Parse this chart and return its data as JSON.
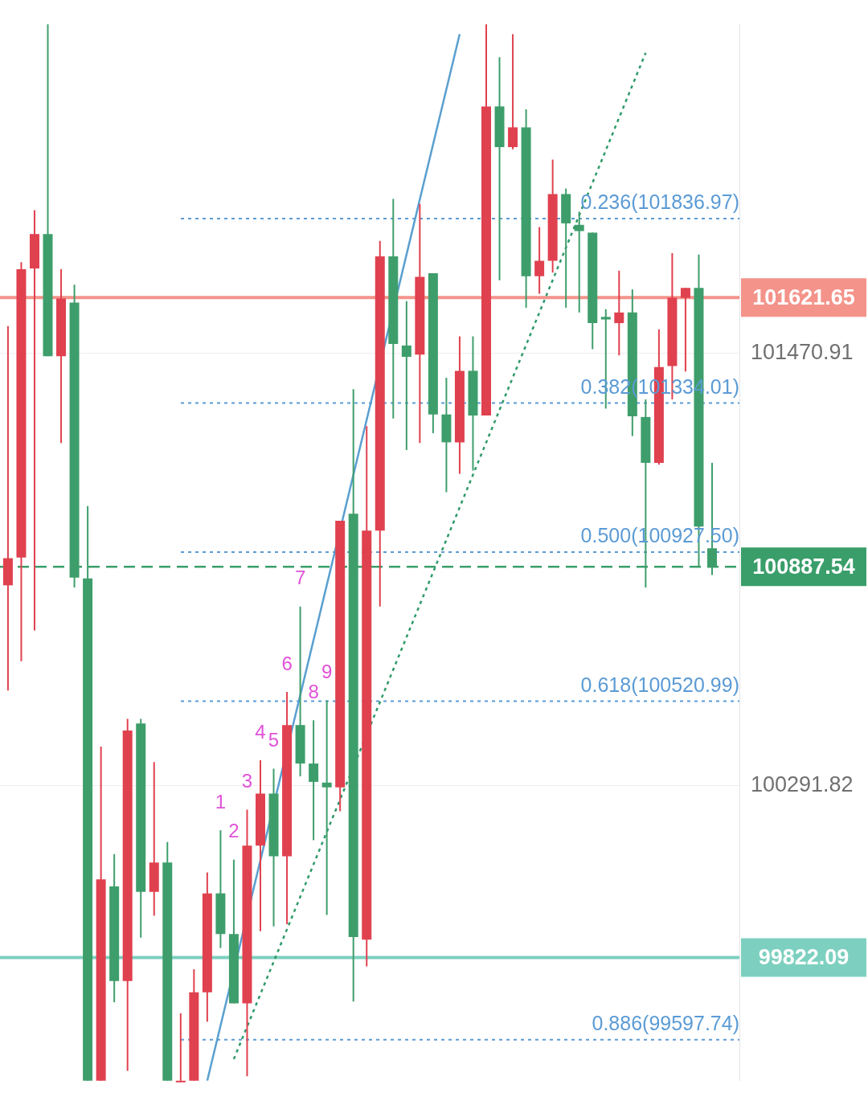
{
  "chart_data": {
    "type": "candlestick",
    "categories": [
      null,
      null,
      null,
      null,
      null,
      null,
      null,
      null,
      null,
      null,
      null,
      null,
      null,
      null,
      null,
      null,
      null,
      null,
      null,
      null,
      null,
      null,
      null,
      null,
      null,
      null,
      null,
      null,
      null,
      null,
      null,
      null,
      null,
      null,
      null,
      null,
      null,
      null,
      null,
      null,
      null,
      null,
      null,
      null,
      null,
      null,
      null,
      null,
      null,
      null,
      null,
      null,
      null,
      null
    ],
    "ohlc": [
      [
        100837,
        101544,
        100550,
        100911
      ],
      [
        100913,
        101718,
        100630,
        101699
      ],
      [
        101701,
        101860,
        100714,
        101795
      ],
      [
        101795,
        102367,
        101462,
        101462
      ],
      [
        101462,
        101699,
        101225,
        101619
      ],
      [
        101608,
        101657,
        100831,
        100858
      ],
      [
        100856,
        101053,
        99486,
        99486
      ],
      [
        99486,
        100397,
        99486,
        100035
      ],
      [
        100016,
        100104,
        99700,
        99758
      ],
      [
        99758,
        100473,
        99513,
        100441
      ],
      [
        100460,
        100473,
        99876,
        100001
      ],
      [
        100001,
        100355,
        99936,
        100081
      ],
      [
        100081,
        100137,
        99486,
        99486
      ],
      [
        99486,
        99670,
        99486,
        99486
      ],
      [
        99486,
        99790,
        99486,
        99727
      ],
      [
        99727,
        100054,
        99647,
        99997
      ],
      [
        99997,
        100169,
        99848,
        99886
      ],
      [
        99886,
        100089,
        99697,
        99697
      ],
      [
        99697,
        100225,
        99498,
        100127
      ],
      [
        100127,
        100360,
        99894,
        100269
      ],
      [
        100269,
        100337,
        99907,
        100098
      ],
      [
        100098,
        100546,
        99913,
        100456
      ],
      [
        100456,
        100779,
        100316,
        100351
      ],
      [
        100351,
        100469,
        100142,
        100301
      ],
      [
        100299,
        100523,
        99938,
        100286
      ],
      [
        100286,
        101013,
        100221,
        101013
      ],
      [
        101032,
        101372,
        99702,
        99878
      ],
      [
        99871,
        101271,
        99798,
        100986
      ],
      [
        100986,
        101776,
        100779,
        101734
      ],
      [
        101734,
        101891,
        101292,
        101495
      ],
      [
        101491,
        101612,
        101206,
        101460
      ],
      [
        101466,
        101877,
        101225,
        101678
      ],
      [
        101688,
        101688,
        101252,
        101303
      ],
      [
        101303,
        101403,
        101091,
        101227
      ],
      [
        101227,
        101516,
        101141,
        101422
      ],
      [
        101422,
        101516,
        101150,
        101300
      ],
      [
        101300,
        102367,
        101300,
        102143
      ],
      [
        102143,
        102277,
        101669,
        102032
      ],
      [
        102032,
        102340,
        102026,
        102086
      ],
      [
        102086,
        102135,
        101594,
        101680
      ],
      [
        101680,
        101814,
        101632,
        101722
      ],
      [
        101722,
        101998,
        101690,
        101904
      ],
      [
        101904,
        101919,
        101594,
        101824
      ],
      [
        101820,
        101856,
        101581,
        101803
      ],
      [
        101799,
        101799,
        101481,
        101552
      ],
      [
        101569,
        101590,
        101319,
        101562
      ],
      [
        101552,
        101695,
        101464,
        101581
      ],
      [
        101581,
        101644,
        101244,
        101298
      ],
      [
        101296,
        101344,
        100831,
        101171
      ],
      [
        101171,
        101535,
        101166,
        101432
      ],
      [
        101435,
        101743,
        101344,
        101621
      ],
      [
        101621,
        101648,
        101420,
        101648
      ],
      [
        101648,
        101739,
        100886,
        100997
      ],
      [
        100938,
        101171,
        100865,
        100887.54
      ]
    ],
    "colors": [
      "#e0414f",
      "#e0414f",
      "#e0414f",
      "#3e9e6b",
      "#e0414f",
      "#3e9e6b",
      "#3e9e6b",
      "#e0414f",
      "#3e9e6b",
      "#e0414f",
      "#3e9e6b",
      "#e0414f",
      "#3e9e6b",
      "#e0414f",
      "#e0414f",
      "#e0414f",
      "#3e9e6b",
      "#3e9e6b",
      "#e0414f",
      "#e0414f",
      "#3e9e6b",
      "#e0414f",
      "#3e9e6b",
      "#3e9e6b",
      "#3e9e6b",
      "#e0414f",
      "#3e9e6b",
      "#e0414f",
      "#e0414f",
      "#3e9e6b",
      "#3e9e6b",
      "#e0414f",
      "#3e9e6b",
      "#3e9e6b",
      "#e0414f",
      "#3e9e6b",
      "#e0414f",
      "#3e9e6b",
      "#e0414f",
      "#3e9e6b",
      "#e0414f",
      "#e0414f",
      "#3e9e6b",
      "#3e9e6b",
      "#3e9e6b",
      "#3e9e6b",
      "#e0414f",
      "#3e9e6b",
      "#3e9e6b",
      "#e0414f",
      "#e0414f",
      "#e0414f",
      "#3e9e6b",
      "#3e9e6b"
    ],
    "value_labels": [
      null,
      null,
      null,
      null,
      null,
      null,
      null,
      null,
      null,
      null,
      null,
      null,
      null,
      null,
      null,
      null,
      "1",
      "2",
      "3",
      "4",
      "5",
      "6",
      "7",
      "8",
      "9",
      null,
      null,
      null,
      null,
      null,
      null,
      null,
      null,
      null,
      null,
      null,
      null,
      null,
      null,
      null,
      null,
      null,
      null,
      null,
      null,
      null,
      null,
      null,
      null,
      null,
      null,
      null,
      null,
      null
    ],
    "series": [
      {
        "type": "line",
        "color": "#5a9fd0",
        "line_style": "solid",
        "values": [
          null,
          null,
          null,
          null,
          null,
          null,
          null,
          null,
          null,
          null,
          null,
          null,
          null,
          null,
          null,
          99486,
          null,
          null,
          null,
          null,
          null,
          null,
          null,
          null,
          null,
          null,
          null,
          null,
          null,
          null,
          null,
          null,
          null,
          null,
          102340,
          null,
          null,
          null,
          null,
          null,
          null,
          null,
          null,
          null,
          null,
          null,
          null,
          null,
          null,
          null,
          null,
          null,
          null,
          null
        ]
      },
      {
        "type": "line",
        "color": "#2f9a6a",
        "line_style": "dotted",
        "values": [
          null,
          null,
          null,
          null,
          null,
          null,
          null,
          null,
          null,
          null,
          null,
          null,
          null,
          null,
          null,
          null,
          null,
          99545,
          null,
          null,
          null,
          null,
          null,
          null,
          null,
          null,
          null,
          null,
          null,
          null,
          null,
          null,
          null,
          null,
          null,
          null,
          null,
          null,
          null,
          null,
          null,
          null,
          null,
          null,
          null,
          null,
          null,
          null,
          102289,
          null,
          null,
          null,
          null,
          null
        ]
      }
    ],
    "ylim": [
      99486,
      102367
    ],
    "yticks": [
      101470.91,
      100291.82
    ],
    "grid": "y",
    "tick_labels": "y",
    "ref_lines": [
      {
        "axis": "y",
        "value": 101836.97,
        "label": "0.236(101836.97)",
        "color": "#5b9bd5",
        "line_style": "dotted"
      },
      {
        "axis": "y",
        "value": 101334.01,
        "label": "0.382(101334.01)",
        "color": "#5b9bd5",
        "line_style": "dotted"
      },
      {
        "axis": "y",
        "value": 100927.5,
        "label": "0.500(100927.50)",
        "color": "#5b9bd5",
        "line_style": "dotted"
      },
      {
        "axis": "y",
        "value": 100520.99,
        "label": "0.618(100520.99)",
        "color": "#5b9bd5",
        "line_style": "dotted"
      },
      {
        "axis": "y",
        "value": 99597.74,
        "label": "0.886(99597.74)",
        "color": "#5b9bd5",
        "line_style": "dotted"
      },
      {
        "axis": "y",
        "value": 101621.65,
        "label": "101621.65",
        "color": "#f4938a",
        "line_style": "solid"
      },
      {
        "axis": "y",
        "value": 100887.54,
        "label": "100887.54",
        "color": "#3a9e6a",
        "line_style": "dashed"
      },
      {
        "axis": "y",
        "value": 99822.09,
        "label": "99822.09",
        "color": "#7dd0bf",
        "line_style": "solid"
      }
    ]
  }
}
